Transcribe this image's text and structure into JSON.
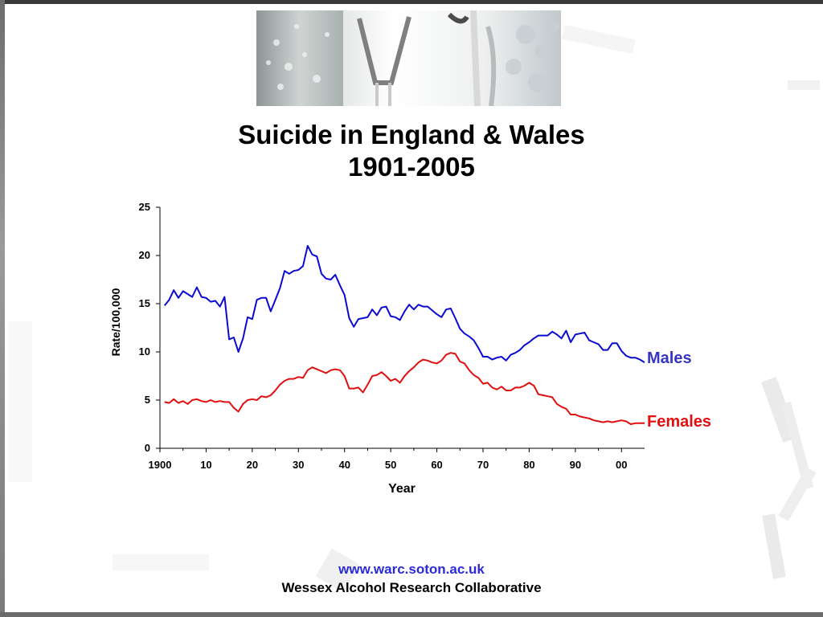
{
  "slide": {
    "title_line1": "Suicide in England & Wales",
    "title_line2": "1901-2005",
    "footer_url": "www.warc.soton.ac.uk",
    "footer_org": "Wessex Alcohol Research Collaborative"
  },
  "colors": {
    "males": "#0a0ad2",
    "females": "#e01010",
    "males_label": "#3535c0",
    "females_label": "#e01010"
  },
  "chart_data": {
    "type": "line",
    "title": "",
    "xlabel": "Year",
    "ylabel": "Rate/100,000",
    "xlim": [
      1900,
      2005
    ],
    "ylim": [
      0,
      25
    ],
    "yticks": [
      0,
      5,
      10,
      15,
      20,
      25
    ],
    "xticks": [
      {
        "value": 1900,
        "label": "1900"
      },
      {
        "value": 1910,
        "label": "10"
      },
      {
        "value": 1920,
        "label": "20"
      },
      {
        "value": 1930,
        "label": "30"
      },
      {
        "value": 1940,
        "label": "40"
      },
      {
        "value": 1950,
        "label": "50"
      },
      {
        "value": 1960,
        "label": "60"
      },
      {
        "value": 1970,
        "label": "70"
      },
      {
        "value": 1980,
        "label": "80"
      },
      {
        "value": 1990,
        "label": "90"
      },
      {
        "value": 2000,
        "label": "00"
      }
    ],
    "grid": false,
    "legend": "direct labels at right end of lines",
    "x": [
      1901,
      1902,
      1903,
      1904,
      1905,
      1906,
      1907,
      1908,
      1909,
      1910,
      1911,
      1912,
      1913,
      1914,
      1915,
      1916,
      1917,
      1918,
      1919,
      1920,
      1921,
      1922,
      1923,
      1924,
      1925,
      1926,
      1927,
      1928,
      1929,
      1930,
      1931,
      1932,
      1933,
      1934,
      1935,
      1936,
      1937,
      1938,
      1939,
      1940,
      1941,
      1942,
      1943,
      1944,
      1945,
      1946,
      1947,
      1948,
      1949,
      1950,
      1951,
      1952,
      1953,
      1954,
      1955,
      1956,
      1957,
      1958,
      1959,
      1960,
      1961,
      1962,
      1963,
      1964,
      1965,
      1966,
      1967,
      1968,
      1969,
      1970,
      1971,
      1972,
      1973,
      1974,
      1975,
      1976,
      1977,
      1978,
      1979,
      1980,
      1981,
      1982,
      1983,
      1984,
      1985,
      1986,
      1987,
      1988,
      1989,
      1990,
      1991,
      1992,
      1993,
      1994,
      1995,
      1996,
      1997,
      1998,
      1999,
      2000,
      2001,
      2002,
      2003,
      2004,
      2005
    ],
    "series": [
      {
        "name": "Males",
        "values": [
          14.8,
          15.4,
          16.4,
          15.6,
          16.3,
          16.0,
          15.7,
          16.7,
          15.7,
          15.6,
          15.2,
          15.3,
          14.7,
          15.7,
          11.3,
          11.5,
          10.0,
          11.4,
          13.6,
          13.4,
          15.4,
          15.6,
          15.6,
          14.2,
          15.4,
          16.6,
          18.4,
          18.1,
          18.4,
          18.5,
          18.9,
          21.0,
          20.1,
          19.9,
          18.1,
          17.6,
          17.5,
          18.0,
          16.9,
          15.9,
          13.5,
          12.6,
          13.4,
          13.5,
          13.6,
          14.4,
          13.8,
          14.6,
          14.7,
          13.7,
          13.6,
          13.3,
          14.2,
          14.9,
          14.4,
          14.9,
          14.7,
          14.7,
          14.3,
          13.9,
          13.6,
          14.4,
          14.5,
          13.5,
          12.4,
          11.9,
          11.6,
          11.2,
          10.4,
          9.5,
          9.5,
          9.2,
          9.4,
          9.5,
          9.1,
          9.7,
          9.9,
          10.2,
          10.7,
          11.0,
          11.4,
          11.7,
          11.7,
          11.7,
          12.1,
          11.8,
          11.4,
          12.2,
          11.0,
          11.8,
          11.9,
          12.0,
          11.2,
          11.0,
          10.8,
          10.2,
          10.2,
          10.9,
          10.9,
          10.1,
          9.6,
          9.4,
          9.4,
          9.2,
          8.9
        ]
      },
      {
        "name": "Females",
        "values": [
          4.8,
          4.7,
          5.1,
          4.7,
          4.9,
          4.6,
          5.0,
          5.1,
          4.9,
          4.8,
          5.0,
          4.8,
          4.9,
          4.8,
          4.8,
          4.2,
          3.8,
          4.6,
          5.0,
          5.1,
          5.0,
          5.4,
          5.3,
          5.5,
          6.0,
          6.6,
          7.0,
          7.2,
          7.2,
          7.4,
          7.3,
          8.1,
          8.4,
          8.2,
          8.0,
          7.8,
          8.1,
          8.2,
          8.1,
          7.5,
          6.2,
          6.2,
          6.3,
          5.8,
          6.6,
          7.5,
          7.6,
          7.9,
          7.5,
          7.0,
          7.2,
          6.8,
          7.5,
          8.0,
          8.4,
          8.9,
          9.2,
          9.1,
          8.9,
          8.8,
          9.1,
          9.7,
          9.9,
          9.8,
          9.0,
          8.8,
          8.1,
          7.6,
          7.3,
          6.7,
          6.8,
          6.3,
          6.1,
          6.4,
          6.0,
          6.0,
          6.3,
          6.3,
          6.5,
          6.8,
          6.5,
          5.6,
          5.5,
          5.4,
          5.3,
          4.6,
          4.3,
          4.1,
          3.5,
          3.5,
          3.3,
          3.2,
          3.1,
          2.9,
          2.8,
          2.7,
          2.8,
          2.7,
          2.8,
          2.9,
          2.8,
          2.5,
          2.6,
          2.6,
          2.6
        ]
      }
    ]
  }
}
